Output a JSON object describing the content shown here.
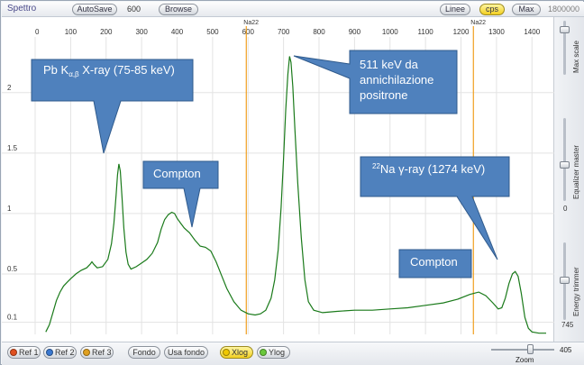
{
  "window": {
    "title": "Spettro"
  },
  "toolbar": {
    "autosave_label": "AutoSave",
    "autosave_value": "600",
    "browse_label": "Browse",
    "linee_label": "Linee",
    "cps_label": "cps",
    "max_label": "Max",
    "max_value": "1800000"
  },
  "chart_data": {
    "type": "line",
    "title": "",
    "xlabel": "",
    "ylabel": "",
    "x_ticks": [
      0,
      100,
      200,
      300,
      400,
      500,
      600,
      700,
      800,
      900,
      1000,
      1100,
      1200,
      1300,
      1400
    ],
    "y_ticks": [
      "0.1",
      "0.5",
      "1",
      "1.5",
      "2"
    ],
    "xlim": [
      0,
      1440
    ],
    "ylim": [
      0,
      2.55
    ],
    "grid": true,
    "marker_lines": [
      {
        "label": "Na22",
        "x": 595
      },
      {
        "label": "Na22",
        "x": 1235
      }
    ],
    "series": [
      {
        "color": "#1a7a1a",
        "points": [
          [
            30,
            0.02
          ],
          [
            40,
            0.08
          ],
          [
            50,
            0.18
          ],
          [
            60,
            0.28
          ],
          [
            70,
            0.35
          ],
          [
            80,
            0.4
          ],
          [
            90,
            0.43
          ],
          [
            100,
            0.46
          ],
          [
            115,
            0.5
          ],
          [
            130,
            0.53
          ],
          [
            145,
            0.55
          ],
          [
            155,
            0.58
          ],
          [
            160,
            0.6
          ],
          [
            165,
            0.58
          ],
          [
            175,
            0.55
          ],
          [
            190,
            0.56
          ],
          [
            205,
            0.62
          ],
          [
            215,
            0.75
          ],
          [
            222,
            0.92
          ],
          [
            228,
            1.15
          ],
          [
            232,
            1.32
          ],
          [
            236,
            1.41
          ],
          [
            240,
            1.35
          ],
          [
            245,
            1.12
          ],
          [
            250,
            0.88
          ],
          [
            256,
            0.68
          ],
          [
            262,
            0.58
          ],
          [
            270,
            0.54
          ],
          [
            285,
            0.56
          ],
          [
            300,
            0.59
          ],
          [
            315,
            0.62
          ],
          [
            330,
            0.67
          ],
          [
            345,
            0.76
          ],
          [
            355,
            0.87
          ],
          [
            365,
            0.95
          ],
          [
            375,
            0.99
          ],
          [
            385,
            1.01
          ],
          [
            393,
            1.0
          ],
          [
            400,
            0.96
          ],
          [
            410,
            0.92
          ],
          [
            420,
            0.88
          ],
          [
            435,
            0.84
          ],
          [
            450,
            0.78
          ],
          [
            465,
            0.73
          ],
          [
            480,
            0.72
          ],
          [
            495,
            0.69
          ],
          [
            510,
            0.6
          ],
          [
            525,
            0.49
          ],
          [
            540,
            0.38
          ],
          [
            560,
            0.27
          ],
          [
            580,
            0.2
          ],
          [
            600,
            0.17
          ],
          [
            620,
            0.16
          ],
          [
            635,
            0.17
          ],
          [
            650,
            0.2
          ],
          [
            665,
            0.3
          ],
          [
            675,
            0.45
          ],
          [
            685,
            0.7
          ],
          [
            693,
            1.05
          ],
          [
            700,
            1.45
          ],
          [
            706,
            1.85
          ],
          [
            712,
            2.15
          ],
          [
            717,
            2.3
          ],
          [
            721,
            2.25
          ],
          [
            726,
            2.05
          ],
          [
            732,
            1.7
          ],
          [
            740,
            1.25
          ],
          [
            750,
            0.8
          ],
          [
            760,
            0.45
          ],
          [
            770,
            0.27
          ],
          [
            785,
            0.2
          ],
          [
            810,
            0.18
          ],
          [
            850,
            0.19
          ],
          [
            900,
            0.2
          ],
          [
            950,
            0.2
          ],
          [
            1000,
            0.21
          ],
          [
            1050,
            0.22
          ],
          [
            1100,
            0.24
          ],
          [
            1150,
            0.26
          ],
          [
            1190,
            0.29
          ],
          [
            1225,
            0.33
          ],
          [
            1250,
            0.35
          ],
          [
            1270,
            0.32
          ],
          [
            1290,
            0.26
          ],
          [
            1305,
            0.21
          ],
          [
            1315,
            0.22
          ],
          [
            1325,
            0.3
          ],
          [
            1335,
            0.42
          ],
          [
            1345,
            0.5
          ],
          [
            1353,
            0.52
          ],
          [
            1361,
            0.48
          ],
          [
            1370,
            0.34
          ],
          [
            1380,
            0.14
          ],
          [
            1390,
            0.05
          ],
          [
            1400,
            0.02
          ],
          [
            1420,
            0.01
          ],
          [
            1440,
            0.01
          ]
        ]
      }
    ]
  },
  "callouts": [
    {
      "id": "pb-xray",
      "prefix": "Pb K",
      "subscript": "α,β",
      "suffix": " X-ray  (75-85 keV)"
    },
    {
      "id": "compton-1",
      "text": "Compton"
    },
    {
      "id": "annih",
      "lines": [
        "511 keV da",
        "annichilazione",
        "positrone"
      ]
    },
    {
      "id": "na22",
      "superscript": "22",
      "text": "Na γ-ray  (1274 keV)"
    },
    {
      "id": "compton-2",
      "text": "Compton"
    }
  ],
  "right_panel": {
    "max_scale_label": "Max scale",
    "equalizer_label": "Equalizer master",
    "energy_trimmer_label": "Energy trimmer",
    "value_0": "0",
    "value_745": "745"
  },
  "bottom": {
    "ref1_label": "Ref 1",
    "ref2_label": "Ref 2",
    "ref3_label": "Ref 3",
    "fondo_label": "Fondo",
    "usa_fondo_label": "Usa fondo",
    "xlog_label": "Xlog",
    "ylog_label": "Ylog",
    "zoom_label": "Zoom",
    "zoom_value": "405"
  },
  "colors": {
    "curve": "#1a7a1a",
    "marker": "#f0a020",
    "callout_fill": "#4f81bd",
    "callout_stroke": "#2f5a8c",
    "ref1_dot": "#e05020",
    "ref2_dot": "#3a78d0",
    "ref3_dot": "#e0a020",
    "xlog_dot": "#f0c800",
    "ylog_dot": "#6ac83c"
  }
}
